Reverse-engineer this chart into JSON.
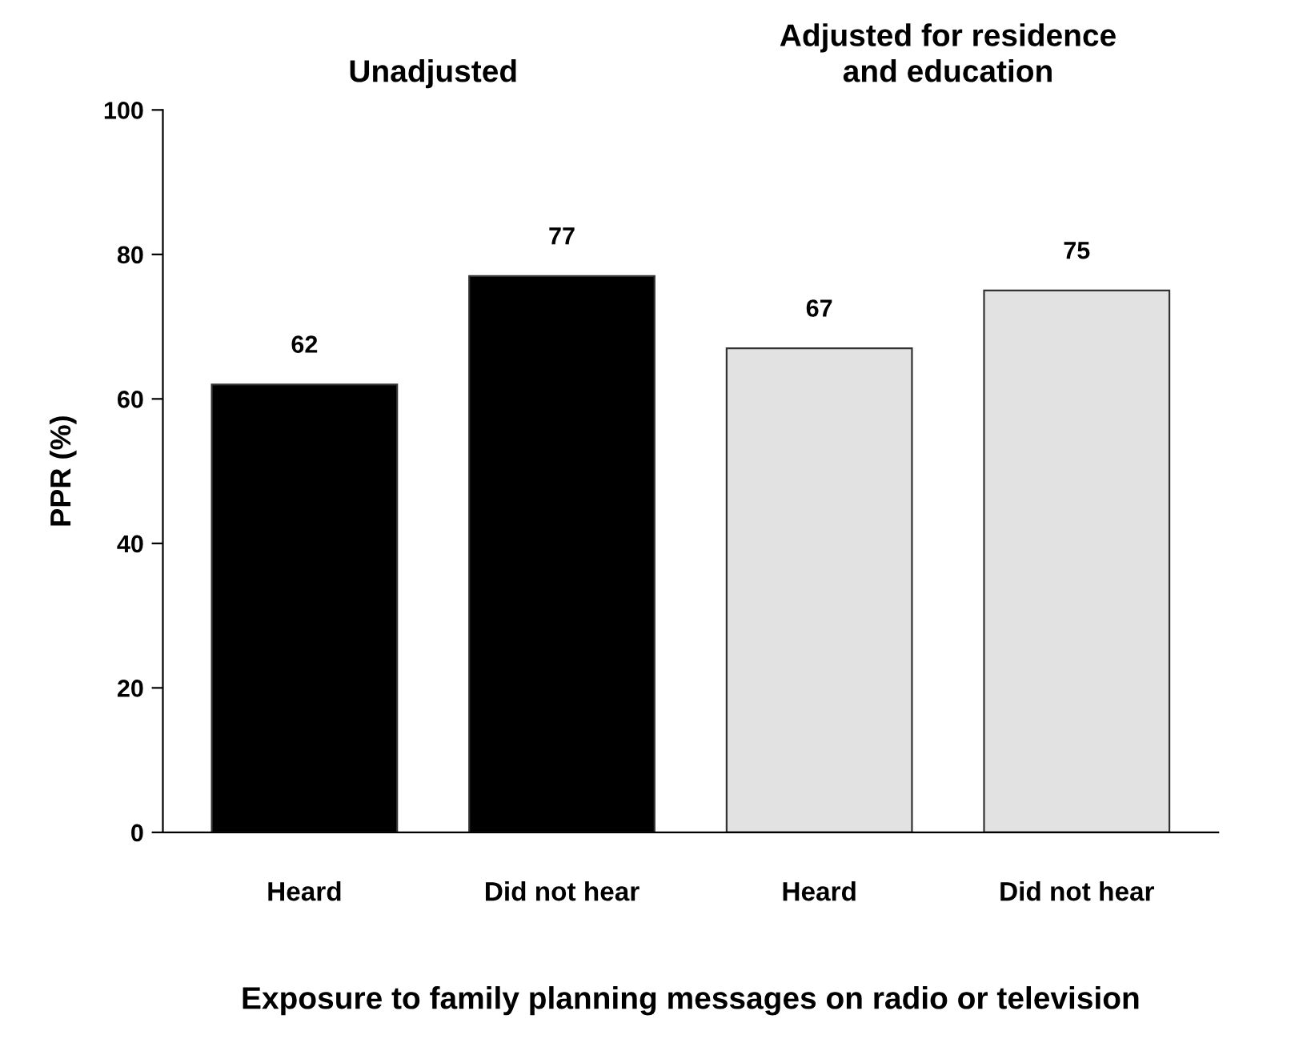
{
  "chart_data": {
    "type": "bar",
    "categories": [
      "Heard",
      "Did not hear",
      "Heard",
      "Did not hear"
    ],
    "values": [
      62,
      77,
      67,
      75
    ],
    "colors": [
      "#000000",
      "#000000",
      "#e2e2e2",
      "#e2e2e2"
    ],
    "data_labels": true,
    "ylim": [
      0,
      100
    ],
    "yticks": [
      0,
      20,
      40,
      60,
      80,
      100
    ],
    "ylabel": "PPR (%)",
    "xlabel": "Exposure to family planning messages on radio or television",
    "annotations": [
      "Unadjusted",
      "Adjusted for residence\nand education"
    ],
    "grid": false,
    "legend": false
  }
}
